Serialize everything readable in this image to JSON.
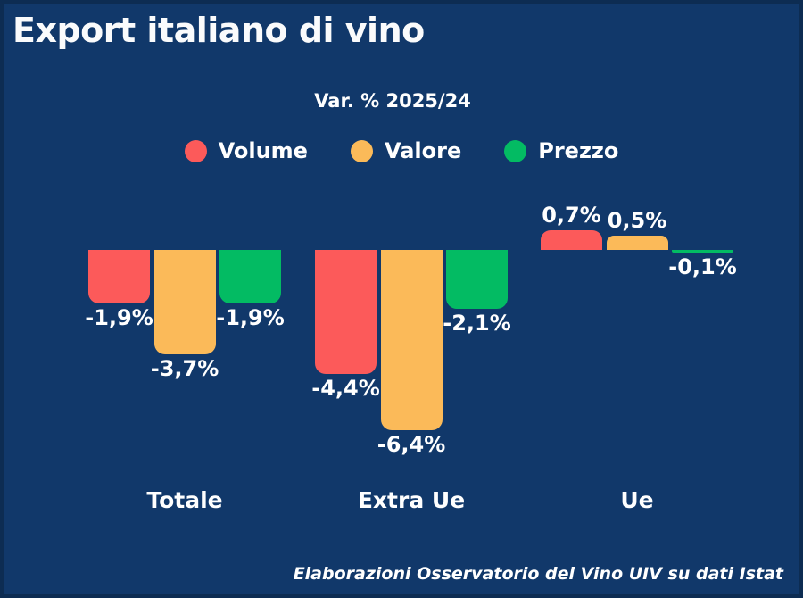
{
  "title": "Export italiano di vino",
  "subtitle": "Var. % 2025/24",
  "footer": "Elaborazioni Osservatorio del Vino UIV su dati Istat",
  "colors": {
    "background": "#11386A",
    "edge": "#0D2C52",
    "text": "#FFFFFF",
    "volume_red": "#FC5A5A",
    "valore_orange": "#FBBA59",
    "prezzo_green": "#03BB63"
  },
  "legend": {
    "items": [
      {
        "label": "Volume",
        "color": "#FC5A5A"
      },
      {
        "label": "Valore",
        "color": "#FBBA59"
      },
      {
        "label": "Prezzo",
        "color": "#03BB63"
      }
    ]
  },
  "chart_data": {
    "type": "bar",
    "title": "Var. % 2025/24",
    "categories": [
      "Totale",
      "Extra Ue",
      "Ue"
    ],
    "series": [
      {
        "name": "Volume",
        "color": "#FC5A5A",
        "values": [
          -1.9,
          -4.4,
          0.7
        ],
        "labels": [
          "-1,9%",
          "-4,4%",
          "0,7%"
        ]
      },
      {
        "name": "Valore",
        "color": "#FBBA59",
        "values": [
          -3.7,
          -6.4,
          0.5
        ],
        "labels": [
          "-3,7%",
          "-6,4%",
          "0,5%"
        ]
      },
      {
        "name": "Prezzo",
        "color": "#03BB63",
        "values": [
          -1.9,
          -2.1,
          -0.1
        ],
        "labels": [
          "-1,9%",
          "-2,1%",
          "-0,1%"
        ]
      }
    ],
    "xlabel": "",
    "ylabel": "",
    "ylim": [
      -7,
      1.5
    ],
    "baseline": 0,
    "grid": false,
    "legend_position": "top",
    "value_label_format": "italian-decimal-comma-percent"
  }
}
